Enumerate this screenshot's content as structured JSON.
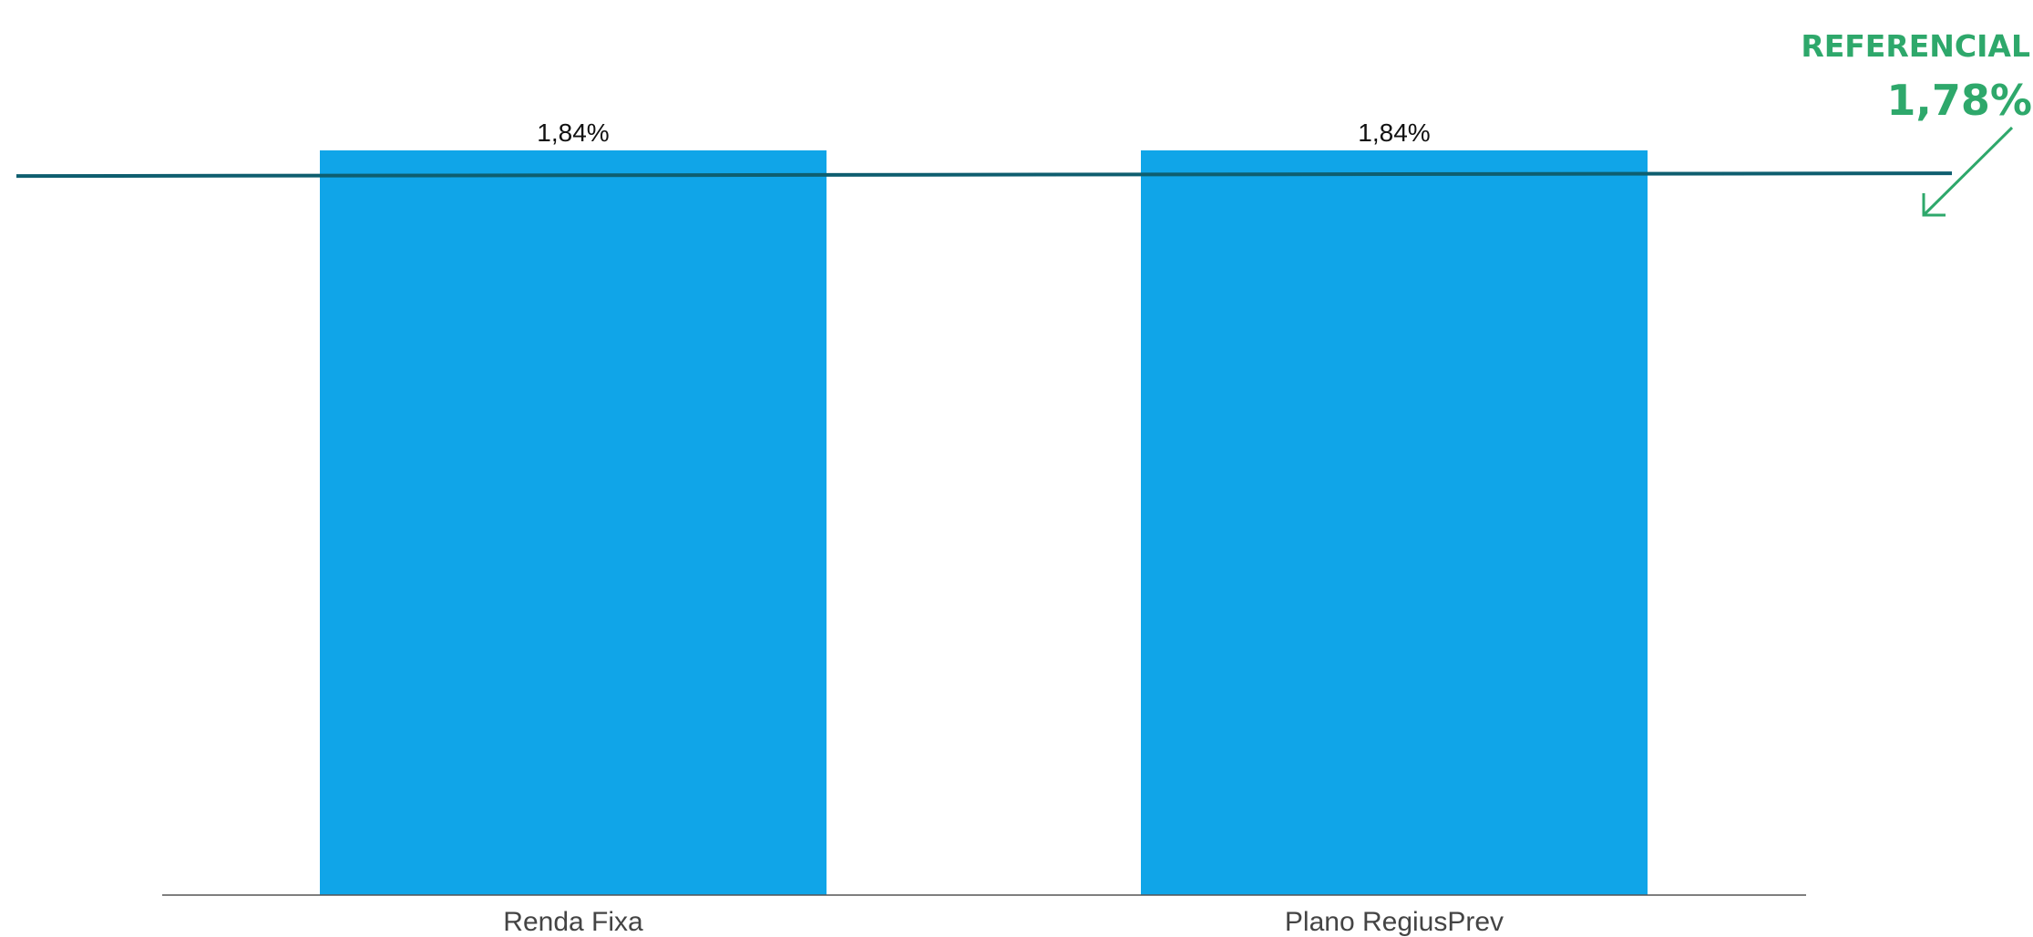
{
  "chart_data": {
    "type": "bar",
    "categories": [
      "Renda Fixa",
      "Plano RegiusPrev"
    ],
    "values": [
      1.84,
      1.84
    ],
    "value_labels": [
      "1,84%",
      "1,84%"
    ],
    "reference_line": {
      "title": "REFERENCIAL",
      "value": 1.78,
      "label": "1,78%"
    },
    "ylim": [
      0,
      1.84
    ],
    "grid": false,
    "title": "",
    "xlabel": "",
    "ylabel": "",
    "colors": {
      "bar": "#10A5E8",
      "reference_line": "#0E5E6F",
      "reference_annotation": "#2EA86B",
      "axis": "#555555"
    }
  }
}
